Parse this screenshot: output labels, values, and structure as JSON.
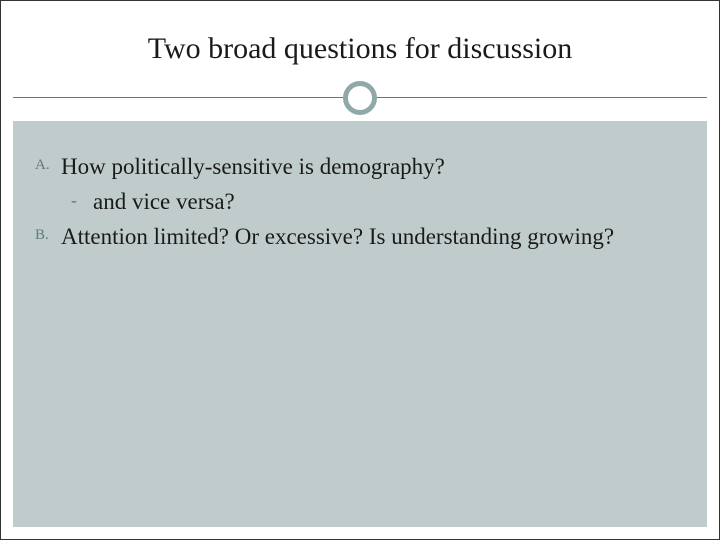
{
  "slide": {
    "title": "Two broad questions for discussion",
    "items": [
      {
        "marker": "A.",
        "text": "How politically-sensitive is demography?",
        "sub": {
          "marker": "-",
          "text": "and vice versa?"
        }
      },
      {
        "marker": "B.",
        "text": "Attention limited?  Or excessive?  Is understanding growing?"
      }
    ]
  },
  "style": {
    "title_fontsize": 30,
    "body_fontsize": 23,
    "marker_fontsize": 15,
    "title_color": "#1a1a1a",
    "body_color": "#1a1a1a",
    "marker_color": "#5f7b7b",
    "background_color": "#ffffff",
    "content_background": "#c0cbcb",
    "divider_color": "#5f7b7b",
    "circle_border_color": "#8fa8a8",
    "circle_border_width": 5,
    "font_family": "Georgia, serif"
  }
}
